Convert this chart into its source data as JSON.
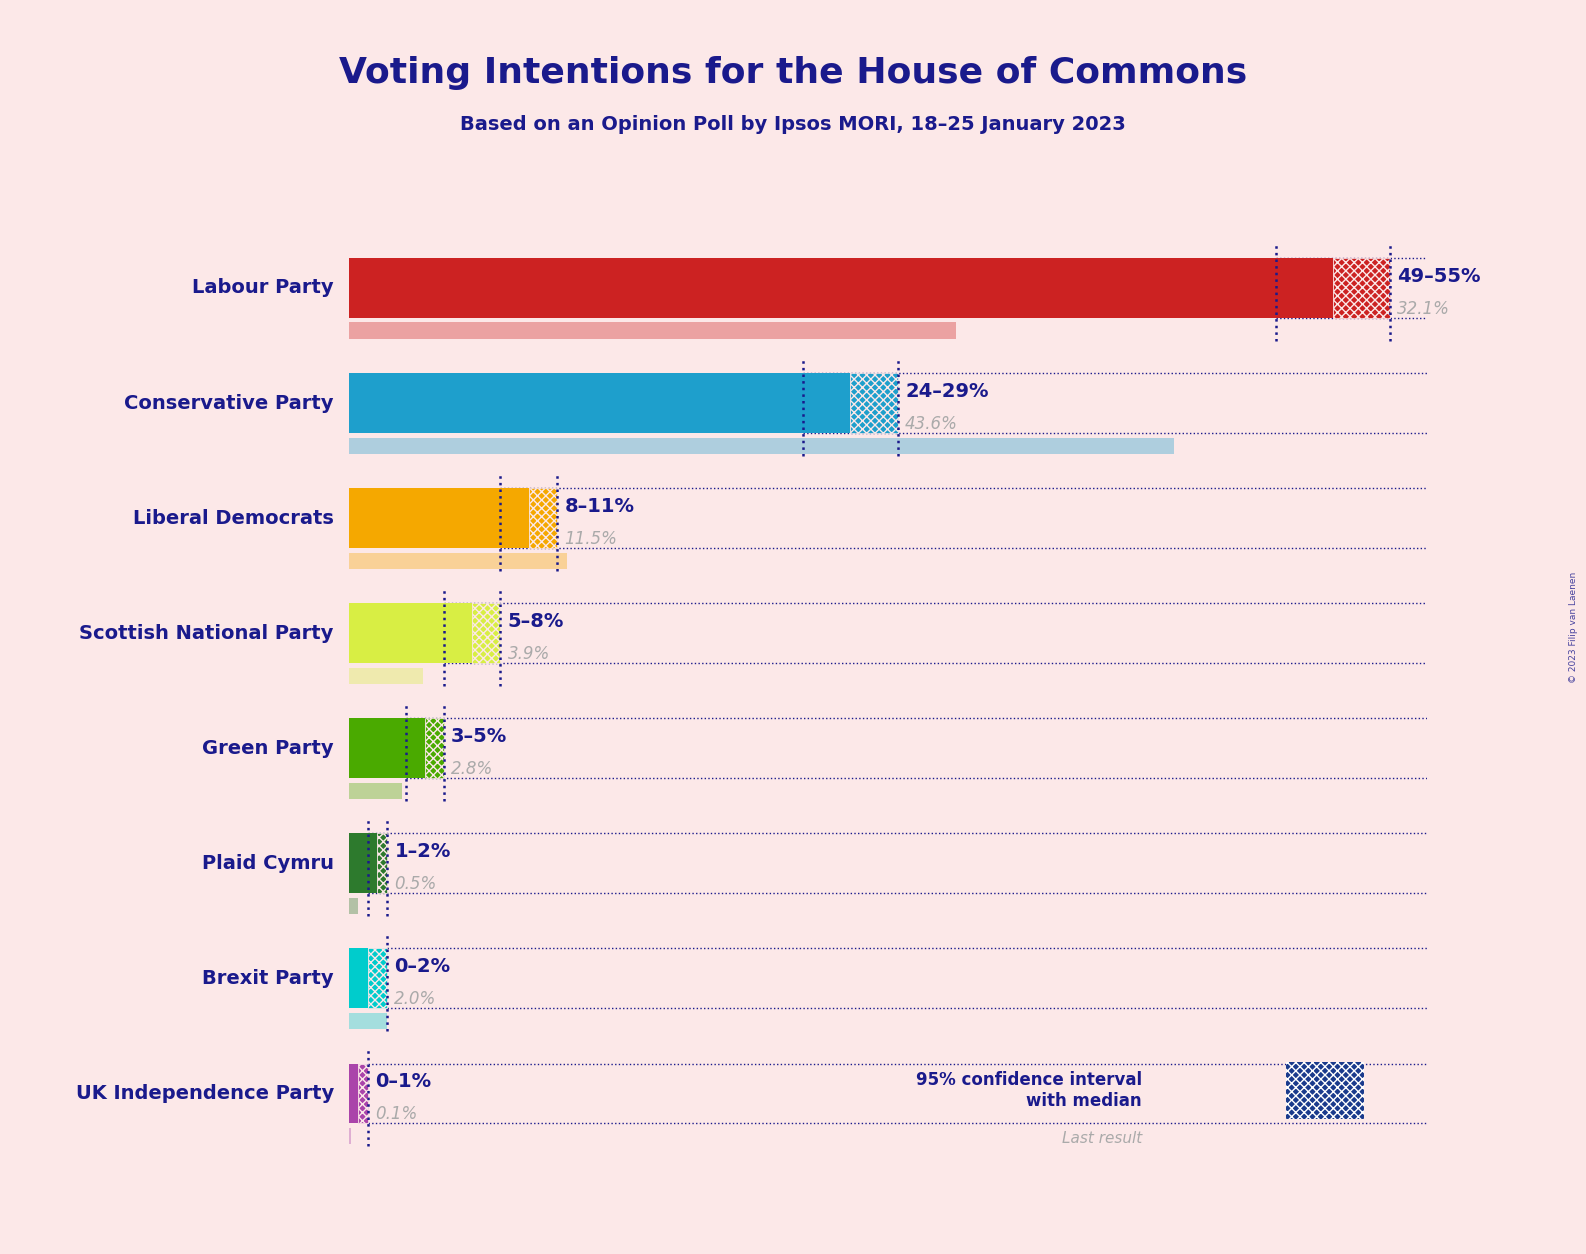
{
  "title": "Voting Intentions for the House of Commons",
  "subtitle": "Based on an Opinion Poll by Ipsos MORI, 18–25 January 2023",
  "copyright": "© 2023 Filip van Laenen",
  "background_color": "#fce8e8",
  "title_color": "#1a1a8c",
  "subtitle_color": "#1a1a8c",
  "parties": [
    "Labour Party",
    "Conservative Party",
    "Liberal Democrats",
    "Scottish National Party",
    "Green Party",
    "Plaid Cymru",
    "Brexit Party",
    "UK Independence Party"
  ],
  "ci_low": [
    49,
    24,
    8,
    5,
    3,
    1,
    0,
    0
  ],
  "ci_high": [
    55,
    29,
    11,
    8,
    5,
    2,
    2,
    1
  ],
  "median": [
    52,
    26.5,
    9.5,
    6.5,
    4,
    1.5,
    1,
    0.5
  ],
  "last_result": [
    32.1,
    43.6,
    11.5,
    3.9,
    2.8,
    0.5,
    2.0,
    0.1
  ],
  "range_labels": [
    "49–55%",
    "24–29%",
    "8–11%",
    "5–8%",
    "3–5%",
    "1–2%",
    "0–2%",
    "0–1%"
  ],
  "colors": [
    "#cc2222",
    "#1e9fcc",
    "#f5a800",
    "#d8ee44",
    "#4aaa00",
    "#2d7a2d",
    "#00cccc",
    "#aa44aa"
  ],
  "last_result_alpha": 0.35,
  "label_color": "#1a1a8c",
  "last_result_color": "#aaaaaa",
  "x_max": 57,
  "dotted_line_color": "#1a1a8c",
  "legend_text": "95% confidence interval\nwith median",
  "legend_last_result": "Last result",
  "legend_color": "#1a3a8c"
}
